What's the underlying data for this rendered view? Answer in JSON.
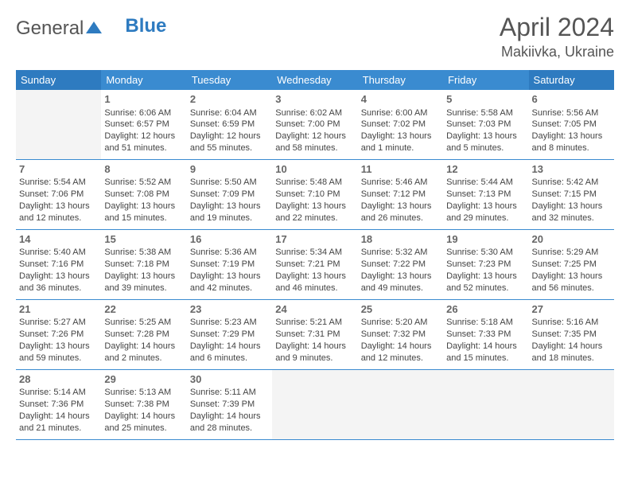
{
  "logo": {
    "text1": "General",
    "text2": "Blue"
  },
  "title": "April 2024",
  "location": "Makiivka, Ukraine",
  "colors": {
    "header_bg": "#3a8bd0",
    "header_weekend_bg": "#2e7bc0",
    "border": "#3a8bd0",
    "text": "#444444",
    "title_text": "#555555",
    "empty_bg": "#f4f4f4"
  },
  "day_labels": [
    "Sunday",
    "Monday",
    "Tuesday",
    "Wednesday",
    "Thursday",
    "Friday",
    "Saturday"
  ],
  "weeks": [
    [
      null,
      {
        "n": "1",
        "sr": "Sunrise: 6:06 AM",
        "ss": "Sunset: 6:57 PM",
        "dl": "Daylight: 12 hours and 51 minutes."
      },
      {
        "n": "2",
        "sr": "Sunrise: 6:04 AM",
        "ss": "Sunset: 6:59 PM",
        "dl": "Daylight: 12 hours and 55 minutes."
      },
      {
        "n": "3",
        "sr": "Sunrise: 6:02 AM",
        "ss": "Sunset: 7:00 PM",
        "dl": "Daylight: 12 hours and 58 minutes."
      },
      {
        "n": "4",
        "sr": "Sunrise: 6:00 AM",
        "ss": "Sunset: 7:02 PM",
        "dl": "Daylight: 13 hours and 1 minute."
      },
      {
        "n": "5",
        "sr": "Sunrise: 5:58 AM",
        "ss": "Sunset: 7:03 PM",
        "dl": "Daylight: 13 hours and 5 minutes."
      },
      {
        "n": "6",
        "sr": "Sunrise: 5:56 AM",
        "ss": "Sunset: 7:05 PM",
        "dl": "Daylight: 13 hours and 8 minutes."
      }
    ],
    [
      {
        "n": "7",
        "sr": "Sunrise: 5:54 AM",
        "ss": "Sunset: 7:06 PM",
        "dl": "Daylight: 13 hours and 12 minutes."
      },
      {
        "n": "8",
        "sr": "Sunrise: 5:52 AM",
        "ss": "Sunset: 7:08 PM",
        "dl": "Daylight: 13 hours and 15 minutes."
      },
      {
        "n": "9",
        "sr": "Sunrise: 5:50 AM",
        "ss": "Sunset: 7:09 PM",
        "dl": "Daylight: 13 hours and 19 minutes."
      },
      {
        "n": "10",
        "sr": "Sunrise: 5:48 AM",
        "ss": "Sunset: 7:10 PM",
        "dl": "Daylight: 13 hours and 22 minutes."
      },
      {
        "n": "11",
        "sr": "Sunrise: 5:46 AM",
        "ss": "Sunset: 7:12 PM",
        "dl": "Daylight: 13 hours and 26 minutes."
      },
      {
        "n": "12",
        "sr": "Sunrise: 5:44 AM",
        "ss": "Sunset: 7:13 PM",
        "dl": "Daylight: 13 hours and 29 minutes."
      },
      {
        "n": "13",
        "sr": "Sunrise: 5:42 AM",
        "ss": "Sunset: 7:15 PM",
        "dl": "Daylight: 13 hours and 32 minutes."
      }
    ],
    [
      {
        "n": "14",
        "sr": "Sunrise: 5:40 AM",
        "ss": "Sunset: 7:16 PM",
        "dl": "Daylight: 13 hours and 36 minutes."
      },
      {
        "n": "15",
        "sr": "Sunrise: 5:38 AM",
        "ss": "Sunset: 7:18 PM",
        "dl": "Daylight: 13 hours and 39 minutes."
      },
      {
        "n": "16",
        "sr": "Sunrise: 5:36 AM",
        "ss": "Sunset: 7:19 PM",
        "dl": "Daylight: 13 hours and 42 minutes."
      },
      {
        "n": "17",
        "sr": "Sunrise: 5:34 AM",
        "ss": "Sunset: 7:21 PM",
        "dl": "Daylight: 13 hours and 46 minutes."
      },
      {
        "n": "18",
        "sr": "Sunrise: 5:32 AM",
        "ss": "Sunset: 7:22 PM",
        "dl": "Daylight: 13 hours and 49 minutes."
      },
      {
        "n": "19",
        "sr": "Sunrise: 5:30 AM",
        "ss": "Sunset: 7:23 PM",
        "dl": "Daylight: 13 hours and 52 minutes."
      },
      {
        "n": "20",
        "sr": "Sunrise: 5:29 AM",
        "ss": "Sunset: 7:25 PM",
        "dl": "Daylight: 13 hours and 56 minutes."
      }
    ],
    [
      {
        "n": "21",
        "sr": "Sunrise: 5:27 AM",
        "ss": "Sunset: 7:26 PM",
        "dl": "Daylight: 13 hours and 59 minutes."
      },
      {
        "n": "22",
        "sr": "Sunrise: 5:25 AM",
        "ss": "Sunset: 7:28 PM",
        "dl": "Daylight: 14 hours and 2 minutes."
      },
      {
        "n": "23",
        "sr": "Sunrise: 5:23 AM",
        "ss": "Sunset: 7:29 PM",
        "dl": "Daylight: 14 hours and 6 minutes."
      },
      {
        "n": "24",
        "sr": "Sunrise: 5:21 AM",
        "ss": "Sunset: 7:31 PM",
        "dl": "Daylight: 14 hours and 9 minutes."
      },
      {
        "n": "25",
        "sr": "Sunrise: 5:20 AM",
        "ss": "Sunset: 7:32 PM",
        "dl": "Daylight: 14 hours and 12 minutes."
      },
      {
        "n": "26",
        "sr": "Sunrise: 5:18 AM",
        "ss": "Sunset: 7:33 PM",
        "dl": "Daylight: 14 hours and 15 minutes."
      },
      {
        "n": "27",
        "sr": "Sunrise: 5:16 AM",
        "ss": "Sunset: 7:35 PM",
        "dl": "Daylight: 14 hours and 18 minutes."
      }
    ],
    [
      {
        "n": "28",
        "sr": "Sunrise: 5:14 AM",
        "ss": "Sunset: 7:36 PM",
        "dl": "Daylight: 14 hours and 21 minutes."
      },
      {
        "n": "29",
        "sr": "Sunrise: 5:13 AM",
        "ss": "Sunset: 7:38 PM",
        "dl": "Daylight: 14 hours and 25 minutes."
      },
      {
        "n": "30",
        "sr": "Sunrise: 5:11 AM",
        "ss": "Sunset: 7:39 PM",
        "dl": "Daylight: 14 hours and 28 minutes."
      },
      null,
      null,
      null,
      null
    ]
  ]
}
